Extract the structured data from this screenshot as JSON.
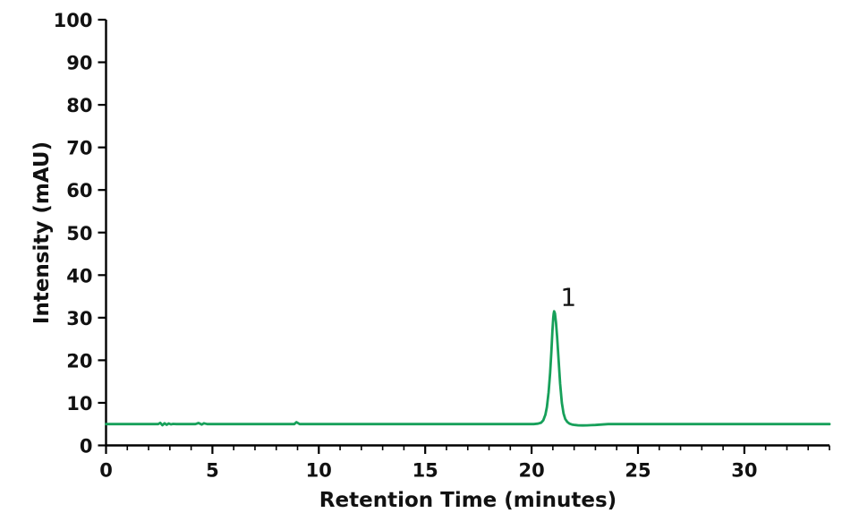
{
  "chart_data": {
    "type": "line",
    "title": "",
    "xlabel": "Retention Time (minutes)",
    "ylabel": "Intensity (mAU)",
    "xlim": [
      0,
      34
    ],
    "ylim": [
      0,
      100
    ],
    "x_major_ticks": [
      0,
      5,
      10,
      15,
      20,
      25,
      30
    ],
    "x_minor_tick_step": 1,
    "y_major_ticks": [
      0,
      10,
      20,
      30,
      40,
      50,
      60,
      70,
      80,
      90,
      100
    ],
    "grid": false,
    "legend": "none",
    "axis_color": "#000000",
    "text_color": "#111111",
    "trace_color": "#17a05a",
    "baseline_mAU": 5,
    "series": [
      {
        "name": "chromatogram-trace",
        "points": [
          [
            0,
            5
          ],
          [
            1,
            5
          ],
          [
            2,
            5
          ],
          [
            2.45,
            5
          ],
          [
            2.55,
            5.3
          ],
          [
            2.65,
            4.75
          ],
          [
            2.75,
            5.2
          ],
          [
            2.85,
            4.85
          ],
          [
            2.95,
            5.15
          ],
          [
            3.05,
            4.95
          ],
          [
            3.15,
            5.05
          ],
          [
            3.3,
            5
          ],
          [
            4.2,
            5
          ],
          [
            4.35,
            5.25
          ],
          [
            4.5,
            4.9
          ],
          [
            4.6,
            5.2
          ],
          [
            4.75,
            5
          ],
          [
            5.5,
            5
          ],
          [
            7,
            5
          ],
          [
            8.5,
            5
          ],
          [
            8.85,
            5
          ],
          [
            8.95,
            5.45
          ],
          [
            9.1,
            5
          ],
          [
            10,
            5
          ],
          [
            12,
            5
          ],
          [
            14,
            5
          ],
          [
            16,
            5
          ],
          [
            18,
            5
          ],
          [
            19.5,
            5
          ],
          [
            20.1,
            5
          ],
          [
            20.3,
            5.1
          ],
          [
            20.45,
            5.35
          ],
          [
            20.55,
            5.9
          ],
          [
            20.65,
            7.2
          ],
          [
            20.72,
            9
          ],
          [
            20.8,
            12.5
          ],
          [
            20.87,
            17
          ],
          [
            20.93,
            22
          ],
          [
            20.98,
            27
          ],
          [
            21.02,
            30
          ],
          [
            21.04,
            31
          ],
          [
            21.06,
            31.5
          ],
          [
            21.1,
            31
          ],
          [
            21.15,
            28.8
          ],
          [
            21.2,
            25.5
          ],
          [
            21.27,
            20
          ],
          [
            21.34,
            14.5
          ],
          [
            21.42,
            10
          ],
          [
            21.5,
            7.5
          ],
          [
            21.58,
            6.2
          ],
          [
            21.68,
            5.5
          ],
          [
            21.78,
            5.1
          ],
          [
            21.9,
            4.9
          ],
          [
            22.05,
            4.8
          ],
          [
            22.2,
            4.72
          ],
          [
            22.4,
            4.7
          ],
          [
            22.6,
            4.72
          ],
          [
            22.8,
            4.75
          ],
          [
            23,
            4.8
          ],
          [
            23.3,
            4.9
          ],
          [
            23.6,
            5
          ],
          [
            24,
            5
          ],
          [
            26,
            5
          ],
          [
            28,
            5
          ],
          [
            30,
            5
          ],
          [
            32,
            5
          ],
          [
            34,
            5
          ]
        ]
      }
    ],
    "annotations": [
      {
        "label": "1",
        "peak_time_min": 21.06,
        "peak_intensity_mAU": 31.5
      }
    ]
  }
}
